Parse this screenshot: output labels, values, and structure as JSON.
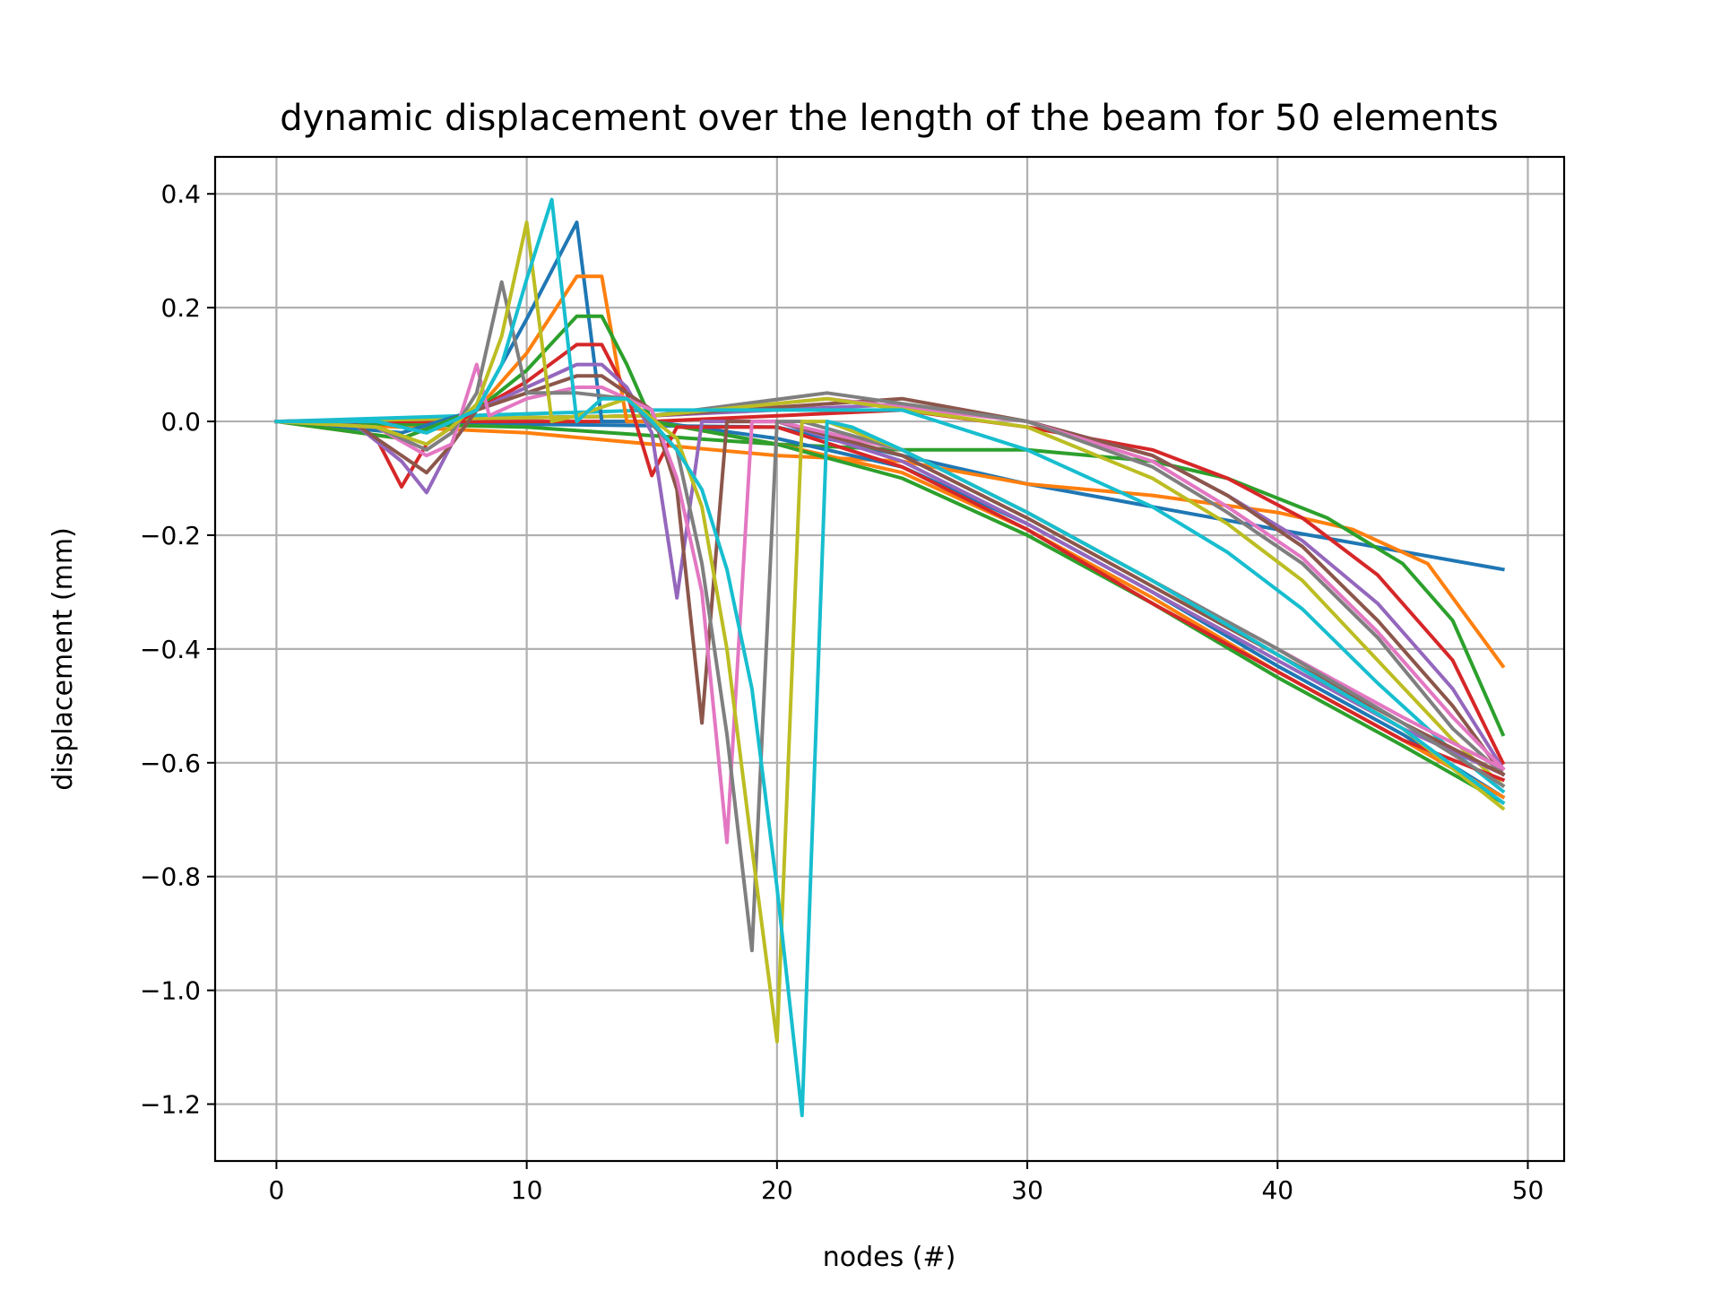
{
  "chart_data": {
    "type": "line",
    "title": "dynamic displacement over the length of the beam  for 50 elements",
    "xlabel": "nodes (#)",
    "ylabel": "displacement (mm)",
    "xlim": [
      -2.45,
      51.45
    ],
    "ylim": [
      -1.3,
      0.465
    ],
    "xticks": [
      0,
      10,
      20,
      30,
      40,
      50
    ],
    "yticks": [
      0.4,
      0.2,
      0.0,
      -0.2,
      -0.4,
      -0.6,
      -0.8,
      -1.0,
      -1.2
    ],
    "ytick_labels": [
      "0.4",
      "0.2",
      "0.0",
      "−0.2",
      "−0.4",
      "−0.6",
      "−0.8",
      "−1.0",
      "−1.2"
    ],
    "xtick_labels": [
      "0",
      "10",
      "20",
      "30",
      "40",
      "50"
    ],
    "grid": true,
    "legend": "none",
    "series": [
      {
        "color": "#1f77b4",
        "points": [
          [
            0,
            0
          ],
          [
            20,
            -0.01
          ],
          [
            30,
            -0.11
          ],
          [
            40,
            -0.19
          ],
          [
            49,
            -0.26
          ]
        ]
      },
      {
        "color": "#ff7f0e",
        "points": [
          [
            0,
            0
          ],
          [
            10,
            -0.02
          ],
          [
            20,
            -0.06
          ],
          [
            25,
            -0.07
          ],
          [
            30,
            -0.11
          ],
          [
            35,
            -0.13
          ],
          [
            40,
            -0.16
          ],
          [
            43,
            -0.19
          ],
          [
            46,
            -0.25
          ],
          [
            49,
            -0.43
          ]
        ]
      },
      {
        "color": "#2ca02c",
        "points": [
          [
            0,
            0
          ],
          [
            10,
            -0.01
          ],
          [
            20,
            -0.04
          ],
          [
            25,
            -0.05
          ],
          [
            30,
            -0.05
          ],
          [
            35,
            -0.07
          ],
          [
            38,
            -0.1
          ],
          [
            42,
            -0.17
          ],
          [
            45,
            -0.25
          ],
          [
            47,
            -0.35
          ],
          [
            49,
            -0.55
          ]
        ]
      },
      {
        "color": "#d62728",
        "points": [
          [
            0,
            0
          ],
          [
            15,
            0
          ],
          [
            25,
            0.02
          ],
          [
            30,
            -0.01
          ],
          [
            35,
            -0.05
          ],
          [
            38,
            -0.1
          ],
          [
            41,
            -0.17
          ],
          [
            44,
            -0.27
          ],
          [
            47,
            -0.42
          ],
          [
            49,
            -0.6
          ]
        ]
      },
      {
        "color": "#9467bd",
        "points": [
          [
            0,
            0
          ],
          [
            15,
            0.01
          ],
          [
            25,
            0.03
          ],
          [
            30,
            0
          ],
          [
            35,
            -0.06
          ],
          [
            38,
            -0.13
          ],
          [
            41,
            -0.21
          ],
          [
            44,
            -0.32
          ],
          [
            47,
            -0.47
          ],
          [
            49,
            -0.61
          ]
        ]
      },
      {
        "color": "#8c564b",
        "points": [
          [
            0,
            0
          ],
          [
            15,
            0.01
          ],
          [
            25,
            0.04
          ],
          [
            30,
            0
          ],
          [
            35,
            -0.06
          ],
          [
            38,
            -0.13
          ],
          [
            41,
            -0.22
          ],
          [
            44,
            -0.35
          ],
          [
            47,
            -0.5
          ],
          [
            49,
            -0.62
          ]
        ]
      },
      {
        "color": "#e377c2",
        "points": [
          [
            0,
            0
          ],
          [
            15,
            0.01
          ],
          [
            22,
            0.04
          ],
          [
            30,
            0
          ],
          [
            35,
            -0.07
          ],
          [
            38,
            -0.15
          ],
          [
            41,
            -0.24
          ],
          [
            44,
            -0.37
          ],
          [
            47,
            -0.52
          ],
          [
            49,
            -0.61
          ]
        ]
      },
      {
        "color": "#7f7f7f",
        "points": [
          [
            0,
            0
          ],
          [
            15,
            0.01
          ],
          [
            22,
            0.05
          ],
          [
            30,
            0
          ],
          [
            35,
            -0.08
          ],
          [
            38,
            -0.16
          ],
          [
            41,
            -0.25
          ],
          [
            44,
            -0.38
          ],
          [
            47,
            -0.54
          ],
          [
            49,
            -0.62
          ]
        ]
      },
      {
        "color": "#bcbd22",
        "points": [
          [
            0,
            0
          ],
          [
            15,
            0.01
          ],
          [
            22,
            0.04
          ],
          [
            30,
            -0.01
          ],
          [
            35,
            -0.1
          ],
          [
            38,
            -0.18
          ],
          [
            41,
            -0.28
          ],
          [
            44,
            -0.42
          ],
          [
            47,
            -0.56
          ],
          [
            49,
            -0.64
          ]
        ]
      },
      {
        "color": "#17becf",
        "points": [
          [
            0,
            0
          ],
          [
            15,
            0.02
          ],
          [
            25,
            0.02
          ],
          [
            30,
            -0.05
          ],
          [
            35,
            -0.15
          ],
          [
            38,
            -0.23
          ],
          [
            41,
            -0.33
          ],
          [
            44,
            -0.46
          ],
          [
            47,
            -0.58
          ],
          [
            49,
            -0.65
          ]
        ]
      },
      {
        "color": "#1f77b4",
        "points": [
          [
            0,
            0
          ],
          [
            5,
            -0.02
          ],
          [
            8,
            0.02
          ],
          [
            10,
            0.18
          ],
          [
            12,
            0.35
          ],
          [
            13,
            0
          ],
          [
            15,
            0
          ],
          [
            20,
            -0.03
          ],
          [
            25,
            -0.08
          ],
          [
            30,
            -0.18
          ],
          [
            35,
            -0.3
          ],
          [
            40,
            -0.43
          ],
          [
            45,
            -0.55
          ],
          [
            49,
            -0.66
          ]
        ]
      },
      {
        "color": "#ff7f0e",
        "points": [
          [
            0,
            0
          ],
          [
            5,
            -0.03
          ],
          [
            8,
            0.02
          ],
          [
            10,
            0.12
          ],
          [
            12,
            0.255
          ],
          [
            13,
            0.255
          ],
          [
            14,
            0
          ],
          [
            15,
            0
          ],
          [
            20,
            -0.04
          ],
          [
            25,
            -0.09
          ],
          [
            30,
            -0.19
          ],
          [
            35,
            -0.31
          ],
          [
            40,
            -0.44
          ],
          [
            45,
            -0.56
          ],
          [
            49,
            -0.66
          ]
        ]
      },
      {
        "color": "#2ca02c",
        "points": [
          [
            0,
            0
          ],
          [
            5,
            -0.03
          ],
          [
            8,
            0.02
          ],
          [
            10,
            0.09
          ],
          [
            12,
            0.185
          ],
          [
            13,
            0.185
          ],
          [
            14,
            0.1
          ],
          [
            15,
            0
          ],
          [
            20,
            -0.04
          ],
          [
            25,
            -0.1
          ],
          [
            30,
            -0.2
          ],
          [
            35,
            -0.32
          ],
          [
            40,
            -0.45
          ],
          [
            45,
            -0.57
          ],
          [
            49,
            -0.67
          ]
        ]
      },
      {
        "color": "#d62728",
        "points": [
          [
            0,
            0
          ],
          [
            3,
            0
          ],
          [
            4,
            -0.03
          ],
          [
            5,
            -0.115
          ],
          [
            6,
            -0.04
          ],
          [
            8,
            0.02
          ],
          [
            10,
            0.07
          ],
          [
            12,
            0.135
          ],
          [
            13,
            0.135
          ],
          [
            14,
            0.05
          ],
          [
            15,
            -0.095
          ],
          [
            16,
            -0.01
          ],
          [
            20,
            -0.01
          ],
          [
            25,
            -0.08
          ],
          [
            30,
            -0.19
          ],
          [
            35,
            -0.32
          ],
          [
            40,
            -0.44
          ],
          [
            45,
            -0.56
          ],
          [
            49,
            -0.63
          ]
        ]
      },
      {
        "color": "#9467bd",
        "points": [
          [
            0,
            0
          ],
          [
            3,
            0
          ],
          [
            5,
            -0.07
          ],
          [
            6,
            -0.125
          ],
          [
            7,
            -0.04
          ],
          [
            8,
            0.02
          ],
          [
            10,
            0.06
          ],
          [
            12,
            0.1
          ],
          [
            13,
            0.1
          ],
          [
            14,
            0.06
          ],
          [
            15,
            -0.02
          ],
          [
            16,
            -0.31
          ],
          [
            17,
            0
          ],
          [
            20,
            0
          ],
          [
            25,
            -0.07
          ],
          [
            30,
            -0.18
          ],
          [
            35,
            -0.3
          ],
          [
            40,
            -0.42
          ],
          [
            45,
            -0.54
          ],
          [
            49,
            -0.62
          ]
        ]
      },
      {
        "color": "#8c564b",
        "points": [
          [
            0,
            0
          ],
          [
            3,
            0
          ],
          [
            5,
            -0.06
          ],
          [
            6,
            -0.09
          ],
          [
            7,
            -0.04
          ],
          [
            8,
            0.02
          ],
          [
            10,
            0.05
          ],
          [
            12,
            0.08
          ],
          [
            13,
            0.08
          ],
          [
            15,
            0.02
          ],
          [
            16,
            -0.12
          ],
          [
            17,
            -0.53
          ],
          [
            18,
            0
          ],
          [
            20,
            0
          ],
          [
            25,
            -0.06
          ],
          [
            30,
            -0.17
          ],
          [
            35,
            -0.29
          ],
          [
            40,
            -0.41
          ],
          [
            45,
            -0.53
          ],
          [
            49,
            -0.62
          ]
        ]
      },
      {
        "color": "#e377c2",
        "points": [
          [
            0,
            0
          ],
          [
            4,
            -0.01
          ],
          [
            6,
            -0.06
          ],
          [
            7,
            -0.04
          ],
          [
            8,
            0.1
          ],
          [
            8.5,
            0.01
          ],
          [
            10,
            0.04
          ],
          [
            12,
            0.06
          ],
          [
            13,
            0.06
          ],
          [
            15,
            0.02
          ],
          [
            16,
            -0.1
          ],
          [
            17,
            -0.3
          ],
          [
            18,
            -0.74
          ],
          [
            19,
            0
          ],
          [
            20,
            0
          ],
          [
            25,
            -0.05
          ],
          [
            30,
            -0.16
          ],
          [
            35,
            -0.28
          ],
          [
            40,
            -0.4
          ],
          [
            45,
            -0.52
          ],
          [
            49,
            -0.61
          ]
        ]
      },
      {
        "color": "#7f7f7f",
        "points": [
          [
            0,
            0
          ],
          [
            4,
            -0.01
          ],
          [
            6,
            -0.05
          ],
          [
            7,
            -0.02
          ],
          [
            8,
            0.05
          ],
          [
            9,
            0.245
          ],
          [
            10,
            0.05
          ],
          [
            12,
            0.05
          ],
          [
            14,
            0.04
          ],
          [
            16,
            -0.05
          ],
          [
            17,
            -0.25
          ],
          [
            18,
            -0.55
          ],
          [
            19,
            -0.93
          ],
          [
            20,
            0
          ],
          [
            21,
            0
          ],
          [
            25,
            -0.05
          ],
          [
            30,
            -0.16
          ],
          [
            35,
            -0.28
          ],
          [
            40,
            -0.4
          ],
          [
            45,
            -0.53
          ],
          [
            49,
            -0.64
          ]
        ]
      },
      {
        "color": "#bcbd22",
        "points": [
          [
            0,
            0
          ],
          [
            4,
            -0.01
          ],
          [
            6,
            -0.04
          ],
          [
            7,
            -0.01
          ],
          [
            8,
            0.03
          ],
          [
            9,
            0.15
          ],
          [
            10,
            0.35
          ],
          [
            11,
            0
          ],
          [
            12,
            0.01
          ],
          [
            14,
            0.04
          ],
          [
            16,
            -0.03
          ],
          [
            17,
            -0.15
          ],
          [
            18,
            -0.4
          ],
          [
            19,
            -0.75
          ],
          [
            20,
            -1.09
          ],
          [
            21,
            0
          ],
          [
            22,
            0
          ],
          [
            25,
            -0.05
          ],
          [
            30,
            -0.16
          ],
          [
            35,
            -0.28
          ],
          [
            40,
            -0.41
          ],
          [
            45,
            -0.54
          ],
          [
            49,
            -0.68
          ]
        ]
      },
      {
        "color": "#17becf",
        "points": [
          [
            0,
            0
          ],
          [
            4,
            0
          ],
          [
            6,
            -0.02
          ],
          [
            7,
            0
          ],
          [
            8,
            0.02
          ],
          [
            9,
            0.1
          ],
          [
            10,
            0.25
          ],
          [
            11,
            0.39
          ],
          [
            12,
            0
          ],
          [
            13,
            0.04
          ],
          [
            14,
            0.04
          ],
          [
            15,
            0
          ],
          [
            16,
            -0.05
          ],
          [
            17,
            -0.12
          ],
          [
            18,
            -0.26
          ],
          [
            19,
            -0.47
          ],
          [
            20,
            -0.82
          ],
          [
            21,
            -1.22
          ],
          [
            22,
            0
          ],
          [
            23,
            -0.01
          ],
          [
            25,
            -0.05
          ],
          [
            30,
            -0.16
          ],
          [
            35,
            -0.28
          ],
          [
            40,
            -0.41
          ],
          [
            45,
            -0.54
          ],
          [
            49,
            -0.67
          ]
        ]
      }
    ]
  }
}
